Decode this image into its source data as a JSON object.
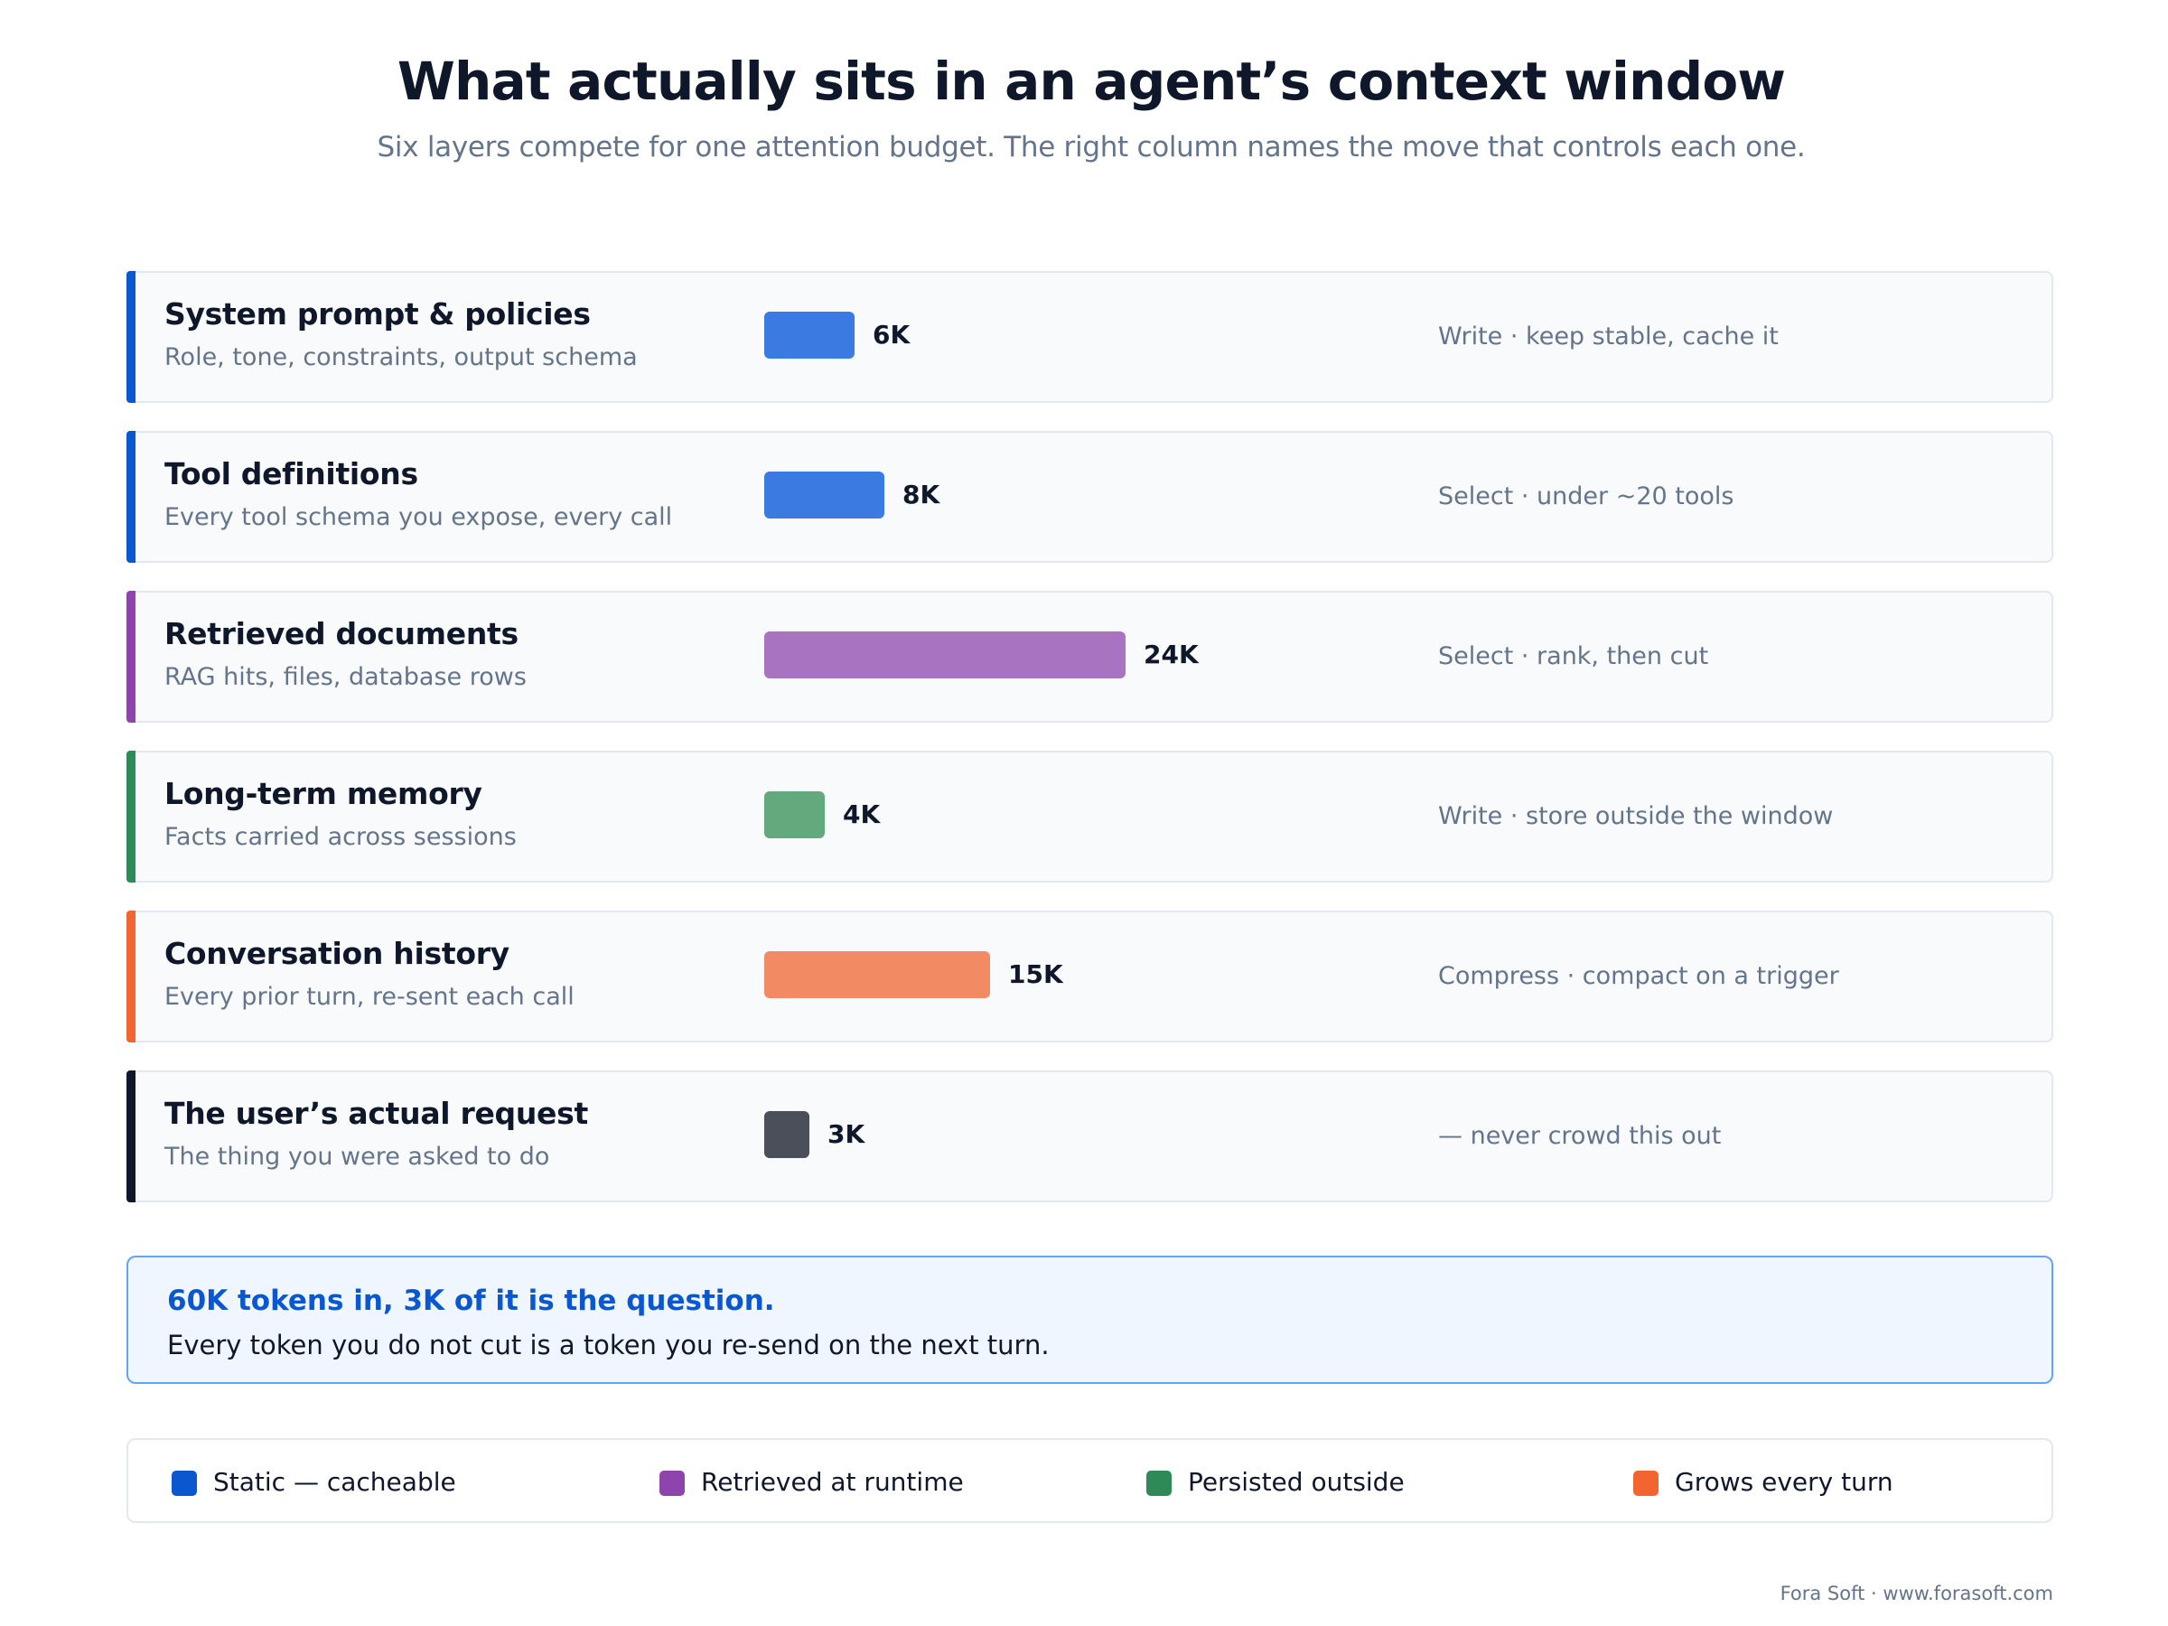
{
  "header": {
    "title": "What actually sits in an agent’s context window",
    "subtitle": "Six layers compete for one attention budget. The right column names the move that controls each one."
  },
  "chart_data": {
    "type": "bar",
    "orientation": "horizontal",
    "unit": "tokens",
    "categories": [
      "System prompt & policies",
      "Tool definitions",
      "Retrieved documents",
      "Long-term memory",
      "Conversation history",
      "The user’s actual request"
    ],
    "values": [
      6000,
      8000,
      24000,
      4000,
      15000,
      3000
    ],
    "value_labels": [
      "6K",
      "8K",
      "24K",
      "4K",
      "15K",
      "3K"
    ],
    "colors": [
      "#3b7ae0",
      "#3b7ae0",
      "#a874c2",
      "#62aa7e",
      "#f28b63",
      "#4a4f5a"
    ],
    "accent_colors": [
      "#0b57d0",
      "#0b57d0",
      "#8e44ad",
      "#2e8b57",
      "#f26430",
      "#0f172a"
    ]
  },
  "layers": [
    {
      "name": "System prompt & policies",
      "desc": "Role, tone, constraints, output schema",
      "move": "Write · keep stable, cache it"
    },
    {
      "name": "Tool definitions",
      "desc": "Every tool schema you expose, every call",
      "move": "Select · under ~20 tools"
    },
    {
      "name": "Retrieved documents",
      "desc": "RAG hits, files, database rows",
      "move": "Select · rank, then cut"
    },
    {
      "name": "Long-term memory",
      "desc": "Facts carried across sessions",
      "move": "Write · store outside the window"
    },
    {
      "name": "Conversation history",
      "desc": "Every prior turn, re-sent each call",
      "move": "Compress · compact on a trigger"
    },
    {
      "name": "The user’s actual request",
      "desc": "The thing you were asked to do",
      "move": "— never crowd this out"
    }
  ],
  "callout": {
    "headline": "60K tokens in, 3K of it is the question.",
    "body": "Every token you do not cut is a token you re-send on the next turn."
  },
  "legend": [
    {
      "label": "Static — cacheable",
      "color": "#0b57d0"
    },
    {
      "label": "Retrieved at runtime",
      "color": "#8e44ad"
    },
    {
      "label": "Persisted outside",
      "color": "#2e8b57"
    },
    {
      "label": "Grows every turn",
      "color": "#f26430"
    }
  ],
  "footer": "Fora Soft · www.forasoft.com"
}
